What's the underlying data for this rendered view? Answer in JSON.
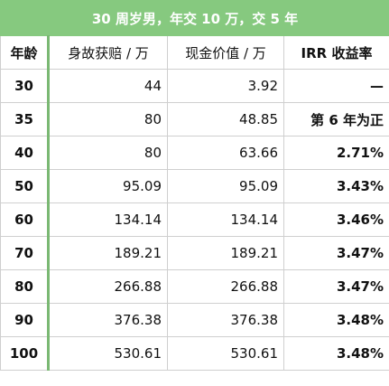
{
  "title": "30 周岁男，年交 10 万，交 5 年",
  "headers": {
    "age": "年龄",
    "death_benefit": "身故获赔 / 万",
    "cash_value": "现金价值 / 万",
    "irr": "IRR 收益率"
  },
  "rows": [
    {
      "age": "30",
      "death_benefit": "44",
      "cash_value": "3.92",
      "irr": "—"
    },
    {
      "age": "35",
      "death_benefit": "80",
      "cash_value": "48.85",
      "irr": "第 6 年为正"
    },
    {
      "age": "40",
      "death_benefit": "80",
      "cash_value": "63.66",
      "irr": "2.71%"
    },
    {
      "age": "50",
      "death_benefit": "95.09",
      "cash_value": "95.09",
      "irr": "3.43%"
    },
    {
      "age": "60",
      "death_benefit": "134.14",
      "cash_value": "134.14",
      "irr": "3.46%"
    },
    {
      "age": "70",
      "death_benefit": "189.21",
      "cash_value": "189.21",
      "irr": "3.47%"
    },
    {
      "age": "80",
      "death_benefit": "266.88",
      "cash_value": "266.88",
      "irr": "3.47%"
    },
    {
      "age": "90",
      "death_benefit": "376.38",
      "cash_value": "376.38",
      "irr": "3.48%"
    },
    {
      "age": "100",
      "death_benefit": "530.61",
      "cash_value": "530.61",
      "irr": "3.48%"
    }
  ],
  "colors": {
    "title_bg": "#86c97f",
    "title_text": "#ffffff",
    "grid": "#cfcfcf"
  }
}
